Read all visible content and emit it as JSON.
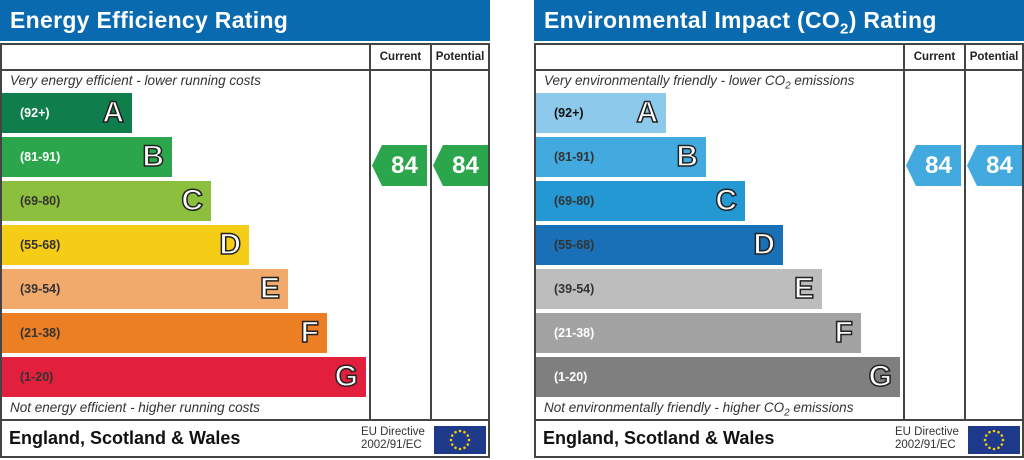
{
  "chart_data": [
    {
      "type": "bar",
      "title": "Energy Efficiency Rating",
      "columns": [
        "Current",
        "Potential"
      ],
      "top_note": "Very energy efficient - lower running costs",
      "bottom_note": "Not energy efficient - higher running costs",
      "bands": [
        {
          "letter": "A",
          "range": "(92+)",
          "color": "#0f7d4c",
          "text_color": "#ffffff"
        },
        {
          "letter": "B",
          "range": "(81-91)",
          "color": "#2ca64c",
          "text_color": "#ffffff"
        },
        {
          "letter": "C",
          "range": "(69-80)",
          "color": "#8dbf3f",
          "text_color": "#333333"
        },
        {
          "letter": "D",
          "range": "(55-68)",
          "color": "#f5cd17",
          "text_color": "#333333"
        },
        {
          "letter": "E",
          "range": "(39-54)",
          "color": "#f1a96c",
          "text_color": "#333333"
        },
        {
          "letter": "F",
          "range": "(21-38)",
          "color": "#ec7f24",
          "text_color": "#333333"
        },
        {
          "letter": "G",
          "range": "(1-20)",
          "color": "#e21f3c",
          "text_color": "#333333"
        }
      ],
      "current": {
        "value": "84",
        "band": "B",
        "color": "#2ca64c"
      },
      "potential": {
        "value": "84",
        "band": "B",
        "color": "#2ca64c"
      },
      "footer": "England, Scotland & Wales",
      "directive": [
        "EU Directive",
        "2002/91/EC"
      ]
    },
    {
      "type": "bar",
      "title": "Environmental Impact (CO2) Rating",
      "columns": [
        "Current",
        "Potential"
      ],
      "top_note": "Very environmentally friendly - lower CO2 emissions",
      "bottom_note": "Not environmentally friendly - higher CO2 emissions",
      "bands": [
        {
          "letter": "A",
          "range": "(92+)",
          "color": "#8dc9ea",
          "text_color": "#111111"
        },
        {
          "letter": "B",
          "range": "(81-91)",
          "color": "#43aadf",
          "text_color": "#333333"
        },
        {
          "letter": "C",
          "range": "(69-80)",
          "color": "#2398d2",
          "text_color": "#333333"
        },
        {
          "letter": "D",
          "range": "(55-68)",
          "color": "#1a70b7",
          "text_color": "#333333"
        },
        {
          "letter": "E",
          "range": "(39-54)",
          "color": "#bdbdbd",
          "text_color": "#333333"
        },
        {
          "letter": "F",
          "range": "(21-38)",
          "color": "#a3a3a3",
          "text_color": "#ffffff"
        },
        {
          "letter": "G",
          "range": "(1-20)",
          "color": "#7f7f7f",
          "text_color": "#ffffff"
        }
      ],
      "current": {
        "value": "84",
        "band": "B",
        "color": "#43aadf"
      },
      "potential": {
        "value": "84",
        "band": "B",
        "color": "#43aadf"
      },
      "footer": "England, Scotland & Wales",
      "directive": [
        "EU Directive",
        "2002/91/EC"
      ]
    }
  ]
}
